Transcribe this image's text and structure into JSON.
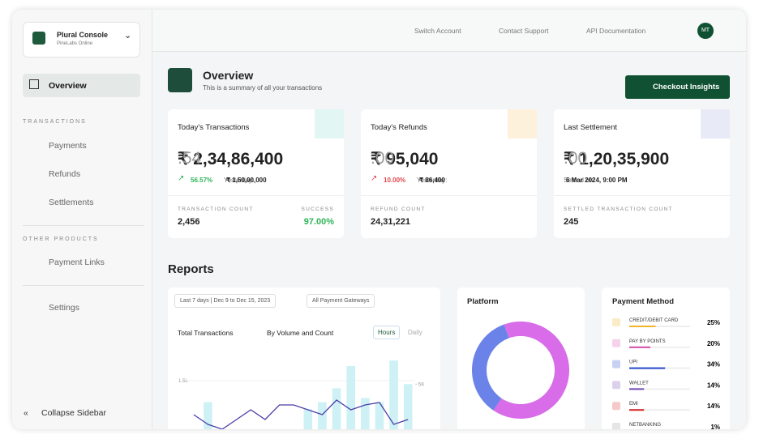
{
  "sidebar": {
    "account": {
      "name": "Plural Console",
      "sub": "PineLabs Online"
    },
    "overview": "Overview",
    "sections": [
      {
        "title": "TRANSACTIONS",
        "items": [
          "Payments",
          "Refunds",
          "Settlements"
        ]
      },
      {
        "title": "OTHER PRODUCTS",
        "items": [
          "Payment Links"
        ]
      }
    ],
    "settings": "Settings",
    "collapse": "Collapse Sidebar"
  },
  "topbar": {
    "links": [
      "Switch Account",
      "Contact Support",
      "API Documentation"
    ],
    "avatar": "MT"
  },
  "header": {
    "title": "Overview",
    "subtitle": "This is a summary of all your transactions",
    "button": "Checkout Insights"
  },
  "cards": [
    {
      "title": "Today's Transactions",
      "amount": "₹ 2,34,86,400",
      "decimal": ".54",
      "change": "56.57%",
      "note_label": "Yesterday:",
      "note": "₹ 1,50,00,000",
      "stats": [
        {
          "label": "TRANSACTION COUNT",
          "value": "2,456"
        },
        {
          "label": "SUCCESS",
          "value": "97.00%"
        }
      ]
    },
    {
      "title": "Today's Refunds",
      "amount": "₹ 95,040",
      "decimal": ".00",
      "change": "10.00%",
      "note_label": "Yesterday:",
      "note": "₹ 86,400",
      "stats": [
        {
          "label": "REFUND COUNT",
          "value": "24,31,221"
        }
      ]
    },
    {
      "title": "Last Settlement",
      "amount": "₹ 1,20,35,900",
      "decimal": ".00",
      "note_label": "Settled on:",
      "note": "6 Mar 2024, 9:00 PM",
      "stats": [
        {
          "label": "SETTLED TRANSACTION COUNT",
          "value": "245"
        }
      ]
    }
  ],
  "reports": {
    "title": "Reports",
    "filters": [
      "Last 7 days | Dec 9 to Dec 15, 2023",
      "All Payment Gateways"
    ],
    "metric": "Total Transactions",
    "mode": "By Volume and Count",
    "toggle": [
      "Hours",
      "Daily"
    ],
    "chart": {
      "type": "bar",
      "ylim": [
        0,
        2
      ],
      "yticks": [
        {
          "value": 1.5,
          "label": "1.5L"
        }
      ],
      "y2lim": [
        0,
        7
      ],
      "y2ticks": [
        {
          "value": 5,
          "label": "5K"
        }
      ],
      "series": [
        {
          "color": "#cdf1f5",
          "axis": "y2",
          "values": [
            1.2,
            3.7,
            0.8,
            1.0,
            1.0,
            0.9,
            1.0,
            0.7,
            3.2,
            3.7,
            4.7,
            6.3,
            4.0,
            3.7,
            6.7,
            5.0
          ]
        },
        {
          "color": "#4b3fa8",
          "values": [
            0.8,
            0.6,
            0.5,
            0.7,
            0.9,
            0.7,
            1.0,
            1.0,
            0.9,
            0.8,
            1.1,
            0.9,
            1.0,
            1.05,
            0.6,
            0.7
          ]
        }
      ]
    }
  },
  "platform": {
    "title": "Platform",
    "type": "donut",
    "values": [
      65,
      35
    ],
    "colors": [
      "#d86ce9",
      "#6b82e8"
    ]
  },
  "payment_method": {
    "title": "Payment Method",
    "categories": [
      "CREDIT/DEBIT CARD",
      "PAY BY POINTS",
      "UPI",
      "WALLET",
      "EMI",
      "NETBANKING"
    ],
    "values": [
      25,
      20,
      34,
      14,
      14,
      1
    ],
    "value_labels": [
      "25%",
      "20%",
      "34%",
      "14%",
      "14%",
      "1%"
    ],
    "colors": [
      "#f0b429",
      "#d64ca8",
      "#2446c9",
      "#7048b8",
      "#d62828",
      "#999999"
    ]
  }
}
